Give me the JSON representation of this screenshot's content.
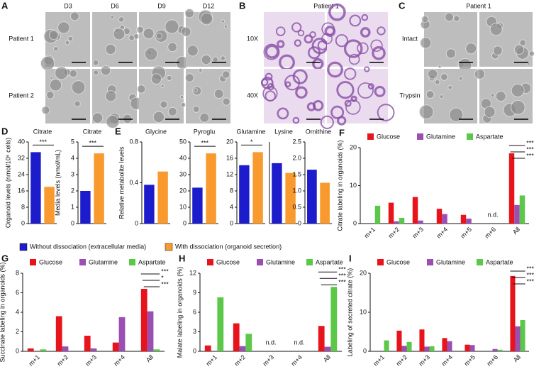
{
  "images": {
    "A": {
      "label": "A",
      "columns": [
        "D3",
        "D6",
        "D9",
        "D12"
      ],
      "rows": [
        "Patient 1",
        "Patient 2"
      ]
    },
    "B": {
      "label": "B",
      "title": "Patient 1",
      "rows": [
        "10X",
        "40X"
      ]
    },
    "C": {
      "label": "C",
      "title": "Patient 1",
      "rows": [
        "Intact",
        "Trypsin"
      ]
    }
  },
  "shared_legend": {
    "entries": [
      {
        "name": "Without dissociation (extracellular media)",
        "color": "#1c1ccc"
      },
      {
        "name": "With dissociation (organoid secretion)",
        "color": "#f89a2d"
      }
    ]
  },
  "chart_data": [
    {
      "type": "bar",
      "panel": "D",
      "title": "Citrate",
      "y_label": "Organoid levels (nmol/10⁶ cells)",
      "values": [
        35,
        18
      ],
      "ylim": [
        0,
        40
      ],
      "yticks": [
        0,
        8,
        16,
        24,
        32,
        40
      ],
      "significance": "***"
    },
    {
      "type": "bar",
      "title": "Citrate",
      "y_label": "Media levels (nmol/mL)",
      "values": [
        2.0,
        4.3
      ],
      "ylim": [
        0,
        5
      ],
      "yticks": [
        0,
        1,
        2,
        3,
        4,
        5
      ],
      "significance": "***"
    },
    {
      "type": "bar",
      "panel": "E",
      "title": "Glycine",
      "y_label": "Relative metabolite levels",
      "values": [
        0.38,
        0.51
      ],
      "ylim": [
        0,
        0.8
      ],
      "yticks": [
        0,
        0.4,
        0.8
      ]
    },
    {
      "type": "bar",
      "title": "Pyroglu",
      "values": [
        22,
        43
      ],
      "ylim": [
        0,
        50
      ],
      "yticks": [
        0,
        10,
        20,
        30,
        40,
        50
      ],
      "significance": "***"
    },
    {
      "type": "bar",
      "title": "Glutamine",
      "values": [
        14.3,
        17.5
      ],
      "ylim": [
        0,
        20
      ],
      "yticks": [
        0,
        4,
        8,
        12,
        16,
        20
      ],
      "significance": "*"
    },
    {
      "type": "bar",
      "title": "Lysine",
      "values": [
        0.74,
        0.62
      ],
      "ylim": [
        0,
        1
      ]
    },
    {
      "type": "bar",
      "title": "Ornithine",
      "values": [
        1.65,
        1.25
      ],
      "ylim": [
        0,
        2.5
      ],
      "yticks": [
        0,
        0.5,
        {
          "value": 1,
          "label": "1.0"
        },
        1.5,
        {
          "value": 2,
          "label": "2.0"
        },
        2.5
      ]
    },
    {
      "type": "grouped_bar",
      "panel": "F",
      "y_label": "Citrate labeling in organoids (%)",
      "categories": [
        "m+1",
        "m+2",
        "m+3",
        "m+4",
        "m+5",
        "m+6",
        "All"
      ],
      "series": [
        {
          "name": "Glucose",
          "color": "#e8141c",
          "values": [
            null,
            5.5,
            7.0,
            3.9,
            2.3,
            null,
            18.5
          ]
        },
        {
          "name": "Glutamine",
          "color": "#9b4fb2",
          "values": [
            null,
            0.6,
            0.8,
            2.5,
            1.3,
            null,
            4.9
          ]
        },
        {
          "name": "Aspartate",
          "color": "#5cc84a",
          "values": [
            4.7,
            1.5,
            null,
            null,
            null,
            null,
            7.4
          ]
        }
      ],
      "ylim": [
        0,
        20
      ],
      "yticks": [
        0,
        10,
        20
      ],
      "significance": [
        "***",
        "***",
        "***"
      ],
      "missing_label": "n.d."
    },
    {
      "type": "grouped_bar",
      "panel": "G",
      "y_label": "Succinate labeling in organoids (%)",
      "categories": [
        "m+1",
        "m+2",
        "m+3",
        "m+4",
        "All"
      ],
      "series": [
        {
          "name": "Glucose",
          "color": "#e8141c",
          "values": [
            0.3,
            3.6,
            1.6,
            0.9,
            6.4
          ]
        },
        {
          "name": "Glutamine",
          "color": "#9b4fb2",
          "values": [
            null,
            0.5,
            0.3,
            3.5,
            4.1
          ]
        },
        {
          "name": "Aspartate",
          "color": "#5cc84a",
          "values": [
            0.2,
            null,
            null,
            null,
            0.2
          ]
        }
      ],
      "ylim": [
        0,
        8
      ],
      "yticks": [
        0,
        2,
        4,
        6,
        8
      ],
      "significance": [
        "***",
        "*",
        "***"
      ]
    },
    {
      "type": "grouped_bar",
      "panel": "H",
      "y_label": "Malate labeling in organoids (%)",
      "categories": [
        "m+1",
        "m+2",
        "m+3",
        "m+4",
        "All"
      ],
      "series": [
        {
          "name": "Glucose",
          "color": "#e8141c",
          "values": [
            0.9,
            4.3,
            null,
            null,
            3.9
          ]
        },
        {
          "name": "Glutamine",
          "color": "#9b4fb2",
          "values": [
            null,
            0.8,
            null,
            null,
            0.7
          ]
        },
        {
          "name": "Aspartate",
          "color": "#5cc84a",
          "values": [
            8.3,
            2.7,
            null,
            null,
            9.9
          ]
        }
      ],
      "ylim": [
        0,
        12
      ],
      "yticks": [
        0,
        3,
        6,
        9,
        12
      ],
      "significance": [
        "***",
        "***",
        "***"
      ],
      "missing_label": "n.d."
    },
    {
      "type": "grouped_bar",
      "panel": "I",
      "y_label": "Labeling of secreted citrate (%)",
      "categories": [
        "m+1",
        "m+2",
        "m+3",
        "m+4",
        "m+5",
        "m+6",
        "All"
      ],
      "series": [
        {
          "name": "Glucose",
          "color": "#e8141c",
          "values": [
            null,
            5.3,
            5.6,
            3.4,
            1.7,
            null,
            19.3
          ]
        },
        {
          "name": "Glutamine",
          "color": "#9b4fb2",
          "values": [
            null,
            1.4,
            1.2,
            2.6,
            1.6,
            0.6,
            6.4
          ]
        },
        {
          "name": "Aspartate",
          "color": "#5cc84a",
          "values": [
            2.8,
            2.4,
            1.3,
            null,
            null,
            0.4,
            8.0
          ]
        }
      ],
      "ylim": [
        0,
        20
      ],
      "yticks": [
        0,
        10,
        20
      ],
      "significance": [
        "***",
        "***",
        "***"
      ]
    }
  ]
}
